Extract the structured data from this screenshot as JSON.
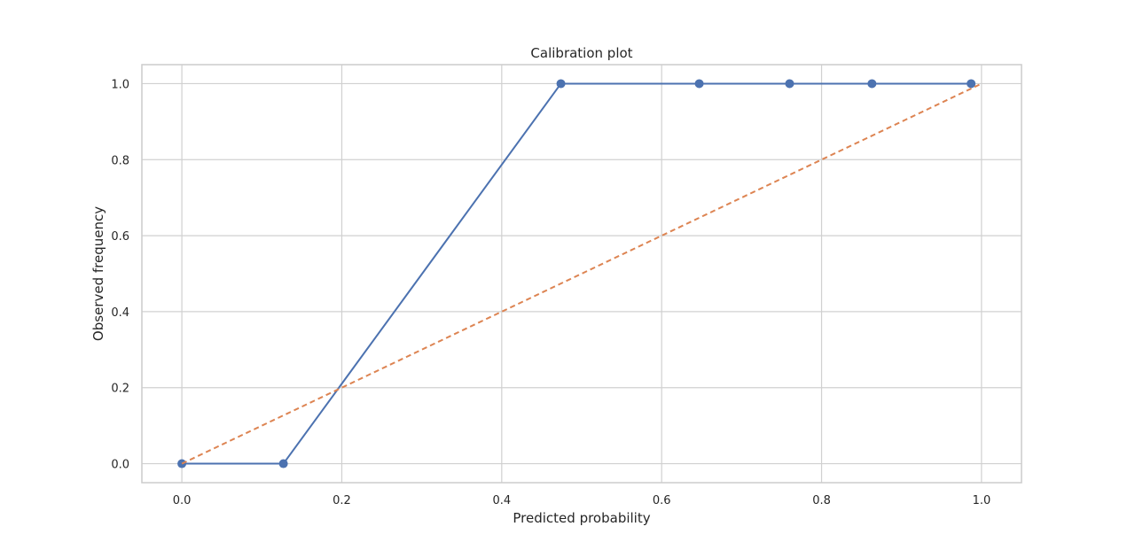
{
  "chart_data": {
    "type": "line",
    "title": "Calibration plot",
    "xlabel": "Predicted probability",
    "ylabel": "Observed frequency",
    "xlim": [
      -0.05,
      1.05
    ],
    "ylim": [
      -0.05,
      1.05
    ],
    "x_ticks": [
      "0.0",
      "0.2",
      "0.4",
      "0.6",
      "0.8",
      "1.0"
    ],
    "y_ticks": [
      "0.0",
      "0.2",
      "0.4",
      "0.6",
      "0.8",
      "1.0"
    ],
    "grid": true,
    "series": [
      {
        "color": "#4c72b0",
        "style": "solid",
        "markers": true,
        "x": [
          0.0,
          0.127,
          0.474,
          0.647,
          0.76,
          0.863,
          0.987
        ],
        "y": [
          0.0,
          0.0,
          1.0,
          1.0,
          1.0,
          1.0,
          1.0
        ]
      },
      {
        "color": "#dd8452",
        "style": "dashed",
        "markers": false,
        "x": [
          0.0,
          1.0
        ],
        "y": [
          0.0,
          1.0
        ]
      }
    ]
  }
}
